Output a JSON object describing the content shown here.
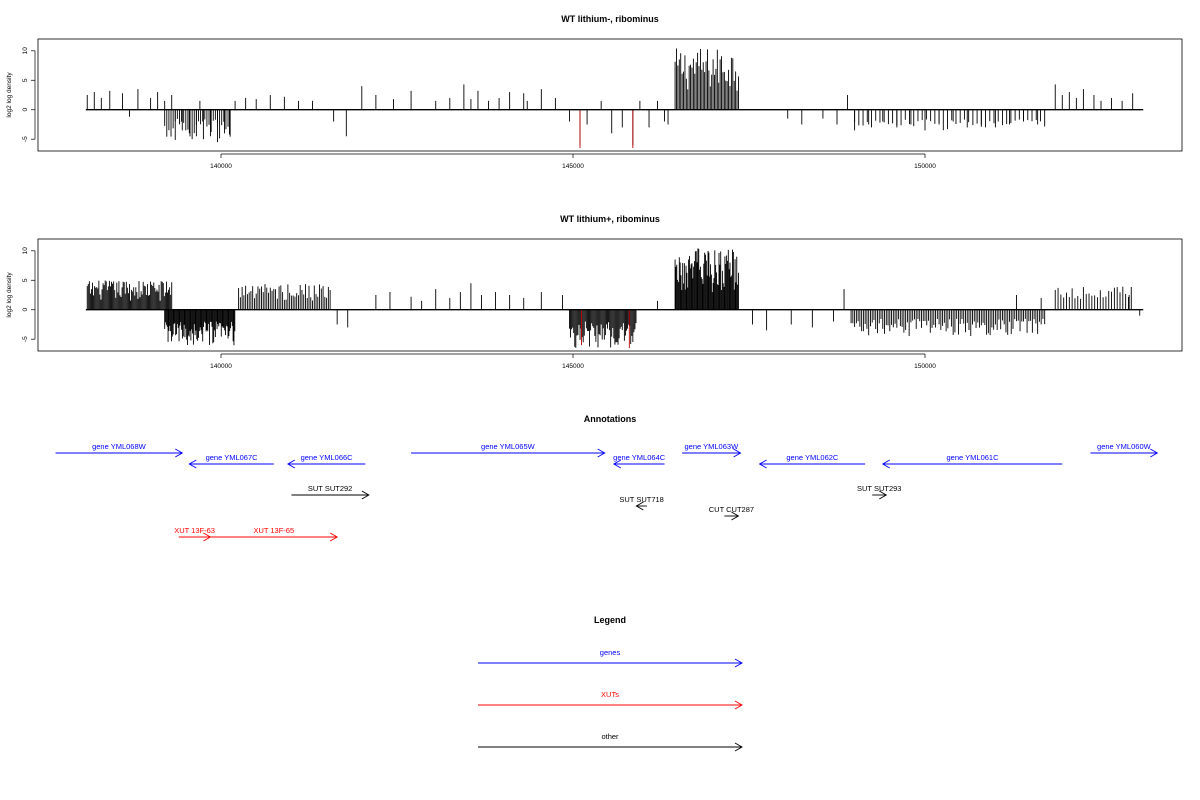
{
  "chart_data": [
    {
      "type": "bar",
      "title": "WT lithium-, ribominus",
      "ylabel": "log2 log density",
      "xlabel": "",
      "xlim": [
        137950,
        153200
      ],
      "ylim": [
        -7,
        12
      ],
      "xticks": [
        140000,
        145000,
        150000
      ],
      "yticks": [
        -5,
        0,
        5,
        10
      ],
      "x_tick_labels": [
        "140000",
        "145000",
        "150000"
      ],
      "y_tick_labels": [
        "-5",
        "0",
        "5",
        "10"
      ],
      "grid": false,
      "series": [
        {
          "color": "#000000",
          "points": [
            [
              138100,
              2.5
            ],
            [
              138200,
              3.0
            ],
            [
              138300,
              2.0
            ],
            [
              138420,
              3.2
            ],
            [
              138600,
              2.8
            ],
            [
              138700,
              -1.2
            ],
            [
              138820,
              3.5
            ],
            [
              139000,
              2.0
            ],
            [
              139100,
              3.0
            ],
            [
              139200,
              1.5
            ],
            [
              139300,
              2.5
            ],
            [
              139350,
              -2.0
            ],
            [
              139450,
              -3.5
            ],
            [
              139550,
              -4.0
            ],
            [
              139650,
              -4.5
            ],
            [
              139700,
              1.5
            ],
            [
              139750,
              -5.0
            ],
            [
              139850,
              -4.5
            ],
            [
              139950,
              -5.5
            ],
            [
              140050,
              -4.0
            ],
            [
              140120,
              -4.2
            ],
            [
              140200,
              1.5
            ],
            [
              140350,
              2.0
            ],
            [
              140500,
              1.8
            ],
            [
              140700,
              2.5
            ],
            [
              140900,
              2.2
            ],
            [
              141100,
              1.5
            ],
            [
              141300,
              1.5
            ],
            [
              141600,
              -2.0
            ],
            [
              141780,
              -4.5
            ],
            [
              142000,
              4.0
            ],
            [
              142200,
              2.5
            ],
            [
              142450,
              1.8
            ],
            [
              142700,
              3.2
            ],
            [
              143050,
              1.5
            ],
            [
              143250,
              2.0
            ],
            [
              143450,
              4.3
            ],
            [
              143550,
              1.8
            ],
            [
              143650,
              3.2
            ],
            [
              143800,
              1.5
            ],
            [
              143950,
              2.0
            ],
            [
              144100,
              3.0
            ],
            [
              144300,
              2.8
            ],
            [
              144350,
              1.5
            ],
            [
              144550,
              3.5
            ],
            [
              144750,
              2.0
            ],
            [
              144950,
              -2.0
            ],
            [
              145100,
              -6.0
            ],
            [
              145200,
              -2.5
            ],
            [
              145400,
              1.5
            ],
            [
              145550,
              -4.0
            ],
            [
              145700,
              -3.0
            ],
            [
              145850,
              -6.0
            ],
            [
              145950,
              1.5
            ],
            [
              146080,
              -3.0
            ],
            [
              146200,
              1.5
            ],
            [
              146300,
              -2.0
            ],
            [
              146350,
              -2.5
            ],
            [
              148050,
              -1.5
            ],
            [
              148250,
              -2.5
            ],
            [
              148550,
              -1.5
            ],
            [
              148750,
              -2.5
            ],
            [
              148900,
              2.5
            ],
            [
              149000,
              -3.5
            ],
            [
              149200,
              -2.5
            ],
            [
              149400,
              -2.0
            ],
            [
              149600,
              -3.0
            ],
            [
              149800,
              -2.5
            ],
            [
              150000,
              -3.5
            ],
            [
              150200,
              -2.5
            ],
            [
              150400,
              -2.0
            ],
            [
              150600,
              -3.0
            ],
            [
              150800,
              -2.5
            ],
            [
              151000,
              -3.0
            ],
            [
              151200,
              -2.5
            ],
            [
              151400,
              -2.0
            ],
            [
              151600,
              -2.5
            ],
            [
              151850,
              4.3
            ],
            [
              151950,
              2.5
            ],
            [
              152050,
              3.0
            ],
            [
              152150,
              2.0
            ],
            [
              152250,
              3.5
            ],
            [
              152400,
              2.5
            ],
            [
              152500,
              1.5
            ],
            [
              152650,
              2.0
            ],
            [
              152800,
              1.5
            ],
            [
              152950,
              2.8
            ]
          ],
          "dense_segments": [
            {
              "x0": 146450,
              "x1": 147350,
              "ymin": 3.0,
              "ymax": 10.5,
              "step": 20
            },
            {
              "x0": 139200,
              "x1": 140150,
              "ymin": -5.5,
              "ymax": -1.5,
              "step": 30
            },
            {
              "x0": 149000,
              "x1": 151700,
              "ymin": -3.5,
              "ymax": -1.5,
              "step": 60
            }
          ]
        },
        {
          "color": "#c00000",
          "points": [
            [
              145100,
              -6.5
            ],
            [
              145850,
              -6.5
            ]
          ]
        }
      ]
    },
    {
      "type": "bar",
      "title": "WT lithium+, ribominus",
      "ylabel": "log2 log density",
      "xlabel": "",
      "xlim": [
        137950,
        153200
      ],
      "ylim": [
        -7,
        12
      ],
      "xticks": [
        140000,
        145000,
        150000
      ],
      "yticks": [
        -5,
        0,
        5,
        10
      ],
      "x_tick_labels": [
        "140000",
        "145000",
        "150000"
      ],
      "y_tick_labels": [
        "-5",
        "0",
        "5",
        "10"
      ],
      "grid": false,
      "series": [
        {
          "color": "#000000",
          "points": [
            [
              141650,
              -2.5
            ],
            [
              141800,
              -3.0
            ],
            [
              142200,
              2.5
            ],
            [
              142400,
              3.0
            ],
            [
              142700,
              2.2
            ],
            [
              142850,
              1.5
            ],
            [
              143050,
              3.5
            ],
            [
              143250,
              2.0
            ],
            [
              143400,
              3.0
            ],
            [
              143550,
              4.5
            ],
            [
              143700,
              2.5
            ],
            [
              143900,
              3.0
            ],
            [
              144100,
              2.5
            ],
            [
              144300,
              2.0
            ],
            [
              144550,
              3.0
            ],
            [
              144850,
              2.5
            ],
            [
              146200,
              1.5
            ],
            [
              147550,
              -2.5
            ],
            [
              147750,
              -3.5
            ],
            [
              148100,
              -2.5
            ],
            [
              148400,
              -3.0
            ],
            [
              148700,
              -2.0
            ],
            [
              148850,
              3.5
            ],
            [
              151300,
              2.5
            ],
            [
              151650,
              2.0
            ],
            [
              152900,
              2.5
            ],
            [
              153050,
              -1.0
            ]
          ],
          "dense_segments": [
            {
              "x0": 138100,
              "x1": 139300,
              "ymin": 1.5,
              "ymax": 5.0,
              "step": 15
            },
            {
              "x0": 139200,
              "x1": 140200,
              "ymin": -6.5,
              "ymax": -2.0,
              "step": 12
            },
            {
              "x0": 140250,
              "x1": 141550,
              "ymin": 1.5,
              "ymax": 4.5,
              "step": 25
            },
            {
              "x0": 144950,
              "x1": 145900,
              "ymin": -6.5,
              "ymax": -2.0,
              "step": 15
            },
            {
              "x0": 146450,
              "x1": 147350,
              "ymin": 3.0,
              "ymax": 10.5,
              "step": 12
            },
            {
              "x0": 148950,
              "x1": 151700,
              "ymin": -4.5,
              "ymax": -1.5,
              "step": 25
            },
            {
              "x0": 151850,
              "x1": 152950,
              "ymin": 1.5,
              "ymax": 4.0,
              "step": 40
            }
          ]
        },
        {
          "color": "#c00000",
          "points": [
            [
              145120,
              -6.0
            ],
            [
              145800,
              -6.5
            ]
          ]
        }
      ]
    }
  ],
  "annotations": {
    "title": "Annotations",
    "colors": {
      "gene": "#0000ff",
      "xut": "#ff0000",
      "other": "#000000"
    },
    "items": [
      {
        "label": "gene YML068W",
        "kind": "gene",
        "x0": 137650,
        "x1": 139450,
        "dir": "right",
        "row": 0
      },
      {
        "label": "gene YML067C",
        "kind": "gene",
        "x0": 139550,
        "x1": 140750,
        "dir": "left",
        "row": 1
      },
      {
        "label": "gene YML066C",
        "kind": "gene",
        "x0": 140950,
        "x1": 142050,
        "dir": "left",
        "row": 1
      },
      {
        "label": "gene YML065W",
        "kind": "gene",
        "x0": 142700,
        "x1": 145450,
        "dir": "right",
        "row": 0
      },
      {
        "label": "gene YML064C",
        "kind": "gene",
        "x0": 145580,
        "x1": 146300,
        "dir": "left",
        "row": 1
      },
      {
        "label": "gene YML063W",
        "kind": "gene",
        "x0": 146550,
        "x1": 147380,
        "dir": "right",
        "row": 0
      },
      {
        "label": "gene YML062C",
        "kind": "gene",
        "x0": 147650,
        "x1": 149150,
        "dir": "left",
        "row": 1
      },
      {
        "label": "gene YML061C",
        "kind": "gene",
        "x0": 149400,
        "x1": 151950,
        "dir": "left",
        "row": 1
      },
      {
        "label": "gene YML060W",
        "kind": "gene",
        "x0": 152350,
        "x1": 153300,
        "dir": "right",
        "row": 0
      },
      {
        "label": "SUT SUT292",
        "kind": "other",
        "x0": 141000,
        "x1": 142100,
        "dir": "right",
        "row": 2
      },
      {
        "label": "SUT SUT718",
        "kind": "other",
        "x0": 145900,
        "x1": 146050,
        "dir": "left",
        "row": 3
      },
      {
        "label": "CUT CUT287",
        "kind": "other",
        "x0": 147150,
        "x1": 147350,
        "dir": "right",
        "row": 4
      },
      {
        "label": "SUT SUT293",
        "kind": "other",
        "x0": 149250,
        "x1": 149450,
        "dir": "right",
        "row": 2
      },
      {
        "label": "XUT 13F-63",
        "kind": "xut",
        "x0": 139400,
        "x1": 139850,
        "dir": "right",
        "row": 5
      },
      {
        "label": "XUT 13F-65",
        "kind": "xut",
        "x0": 139850,
        "x1": 141650,
        "dir": "right",
        "row": 5
      }
    ]
  },
  "legend": {
    "title": "Legend",
    "items": [
      {
        "label": "genes",
        "color": "#0000ff"
      },
      {
        "label": "XUTs",
        "color": "#ff0000"
      },
      {
        "label": "other",
        "color": "#000000"
      }
    ]
  }
}
